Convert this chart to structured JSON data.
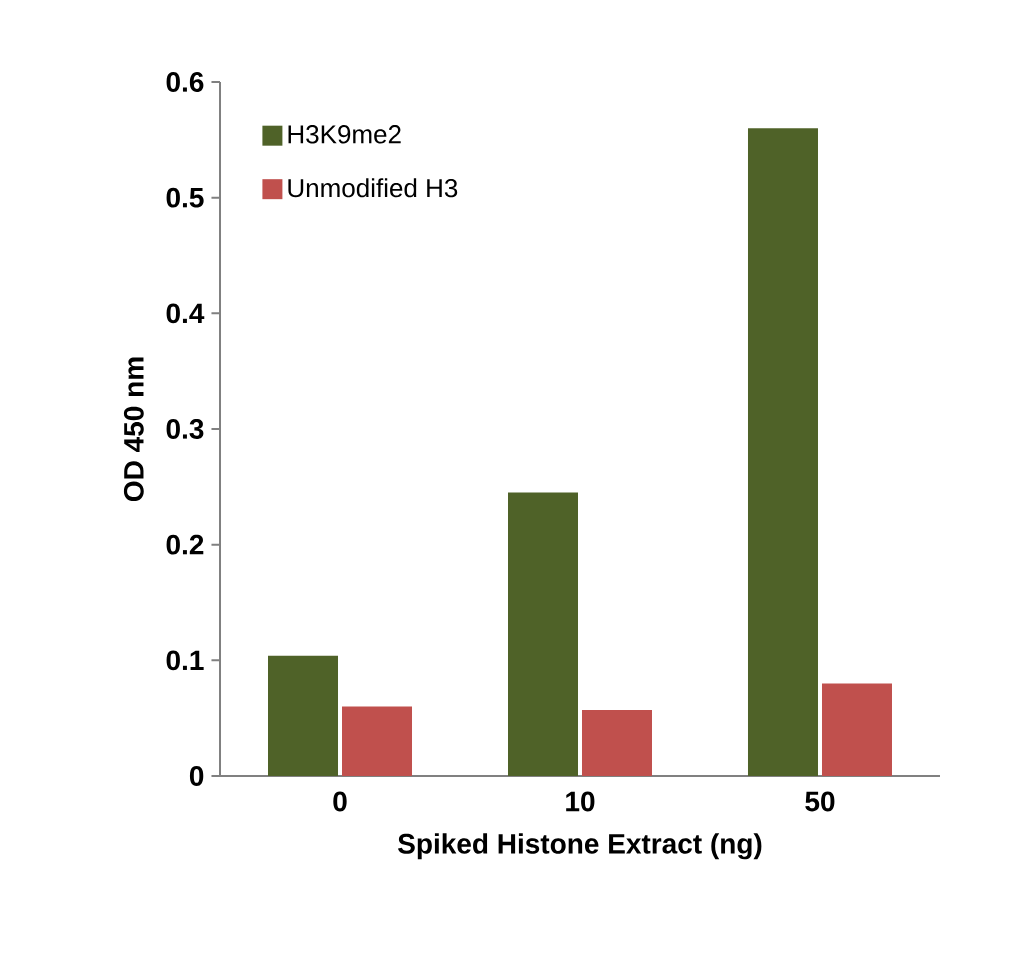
{
  "chart_data": {
    "type": "bar",
    "xlabel": "Spiked Histone Extract (ng)",
    "ylabel": "OD 450 nm",
    "categories": [
      "0",
      "10",
      "50"
    ],
    "series": [
      {
        "name": "H3K9me2",
        "color": "#4f6228",
        "values": [
          0.104,
          0.245,
          0.56
        ]
      },
      {
        "name": "Unmodified H3",
        "color": "#c0504d",
        "values": [
          0.06,
          0.057,
          0.08
        ]
      }
    ],
    "ylim": [
      0,
      0.6
    ],
    "yticks": [
      0,
      0.1,
      0.2,
      0.3,
      0.4,
      0.5,
      0.6
    ],
    "grid": false,
    "legend": "top left"
  }
}
